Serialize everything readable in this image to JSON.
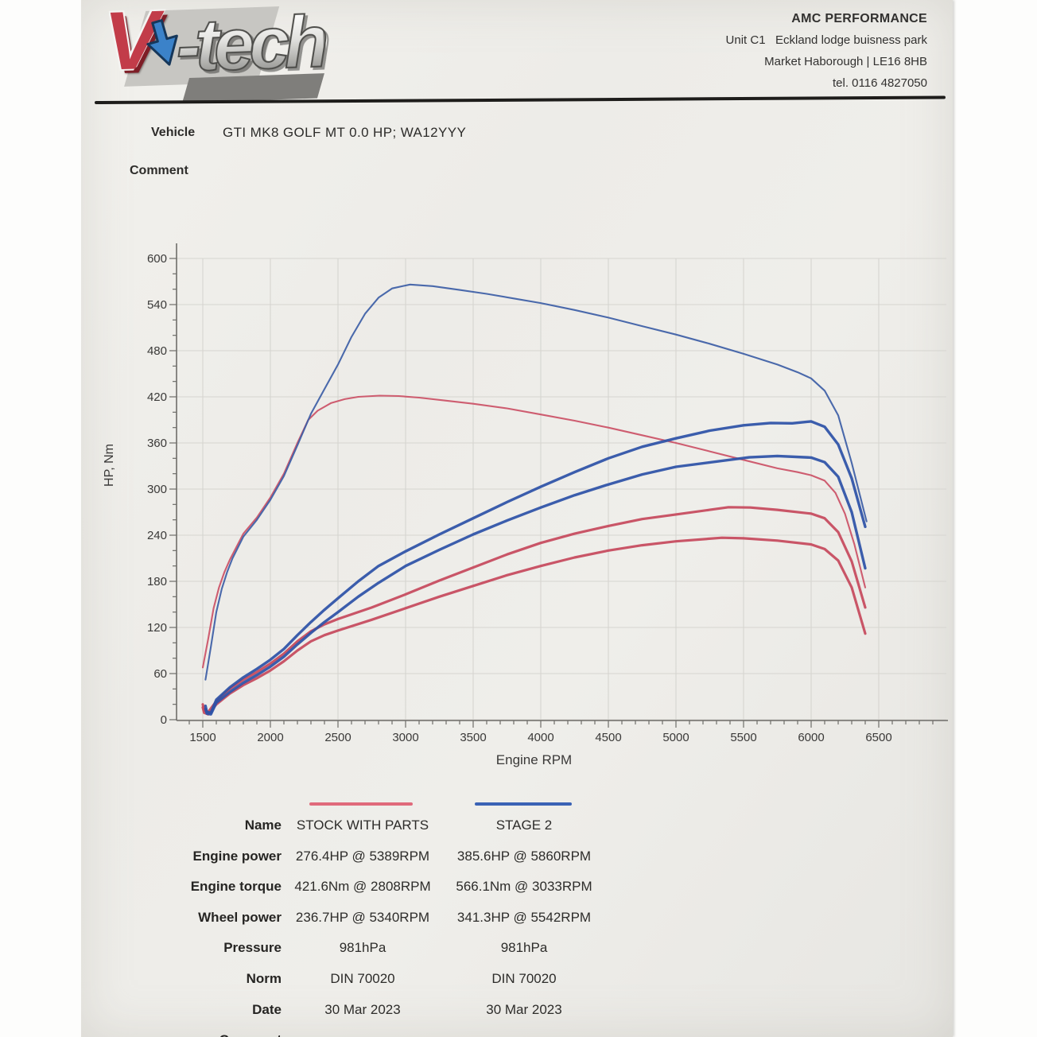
{
  "header": {
    "logo": {
      "v": "V",
      "rest": "-tech"
    },
    "company": {
      "name": "AMC PERFORMANCE",
      "line1": "Unit C1   Eckland lodge buisness park",
      "line2": "Market Haborough | LE16 8HB",
      "line3": "tel. 0116 4827050"
    }
  },
  "info": {
    "vehicle_label": "Vehicle",
    "vehicle_value": "GTI MK8 GOLF MT 0.0 HP; WA12YYY",
    "comment_label": "Comment"
  },
  "chart_data": {
    "type": "line",
    "title": "",
    "xlabel": "Engine RPM",
    "ylabel": "HP, Nm",
    "xlim": [
      1300,
      7000
    ],
    "ylim": [
      0,
      620
    ],
    "x_ticks": [
      1500,
      2000,
      2500,
      3000,
      3500,
      4000,
      4500,
      5000,
      5500,
      6000,
      6500
    ],
    "y_ticks": [
      0,
      60,
      120,
      180,
      240,
      300,
      360,
      420,
      480,
      540,
      600
    ],
    "x_minor_step": 100,
    "y_minor_step": 20,
    "grid": true,
    "legend_position": "below",
    "colors": {
      "stock": "#c6495d",
      "stage2": "#2d52a7",
      "stock_thin": "#cb5266",
      "stage2_thin": "#3d5fa6",
      "legend_stock": "#e06a7b",
      "legend_stage2": "#3a62b5"
    },
    "series": [
      {
        "name": "stock-engine-torque-Nm",
        "legend": "STOCK WITH PARTS",
        "kind": "torque",
        "width": 2.1,
        "color": "#cb5266",
        "points": [
          [
            1500,
            68
          ],
          [
            1540,
            105
          ],
          [
            1580,
            145
          ],
          [
            1620,
            172
          ],
          [
            1660,
            192
          ],
          [
            1700,
            208
          ],
          [
            1800,
            242
          ],
          [
            1900,
            263
          ],
          [
            2000,
            289
          ],
          [
            2100,
            320
          ],
          [
            2200,
            360
          ],
          [
            2280,
            390
          ],
          [
            2350,
            402
          ],
          [
            2450,
            412
          ],
          [
            2550,
            417
          ],
          [
            2650,
            420
          ],
          [
            2808,
            421.6
          ],
          [
            2950,
            421
          ],
          [
            3100,
            419
          ],
          [
            3300,
            415
          ],
          [
            3500,
            411
          ],
          [
            3750,
            405
          ],
          [
            4000,
            397
          ],
          [
            4250,
            389
          ],
          [
            4500,
            380
          ],
          [
            4750,
            370
          ],
          [
            5000,
            360
          ],
          [
            5250,
            349
          ],
          [
            5500,
            338
          ],
          [
            5750,
            327
          ],
          [
            5900,
            322
          ],
          [
            6000,
            318
          ],
          [
            6100,
            311
          ],
          [
            6180,
            295
          ],
          [
            6250,
            268
          ],
          [
            6320,
            228
          ],
          [
            6400,
            172
          ]
        ]
      },
      {
        "name": "stock-engine-power-HP",
        "legend": "STOCK WITH PARTS",
        "kind": "power",
        "width": 3.2,
        "color": "#c6495d",
        "points": [
          [
            1500,
            20
          ],
          [
            1510,
            12
          ],
          [
            1540,
            10
          ],
          [
            1600,
            24
          ],
          [
            1700,
            40
          ],
          [
            1800,
            52
          ],
          [
            1900,
            62
          ],
          [
            2000,
            73
          ],
          [
            2100,
            86
          ],
          [
            2200,
            102
          ],
          [
            2300,
            115
          ],
          [
            2400,
            124
          ],
          [
            2500,
            131
          ],
          [
            2750,
            146
          ],
          [
            3000,
            163
          ],
          [
            3250,
            181
          ],
          [
            3500,
            198
          ],
          [
            3750,
            215
          ],
          [
            4000,
            230
          ],
          [
            4250,
            242
          ],
          [
            4500,
            252
          ],
          [
            4750,
            261
          ],
          [
            5000,
            267
          ],
          [
            5250,
            273
          ],
          [
            5389,
            276.4
          ],
          [
            5550,
            276
          ],
          [
            5750,
            273
          ],
          [
            6000,
            268
          ],
          [
            6100,
            262
          ],
          [
            6200,
            244
          ],
          [
            6300,
            206
          ],
          [
            6400,
            146
          ]
        ]
      },
      {
        "name": "stock-wheel-power-HP",
        "legend": "STOCK WITH PARTS",
        "kind": "power",
        "width": 3.2,
        "color": "#c6495d",
        "points": [
          [
            1500,
            16
          ],
          [
            1510,
            9
          ],
          [
            1540,
            7
          ],
          [
            1600,
            20
          ],
          [
            1700,
            34
          ],
          [
            1800,
            45
          ],
          [
            1900,
            54
          ],
          [
            2000,
            64
          ],
          [
            2100,
            76
          ],
          [
            2200,
            90
          ],
          [
            2300,
            102
          ],
          [
            2400,
            110
          ],
          [
            2500,
            116
          ],
          [
            2750,
            130
          ],
          [
            3000,
            145
          ],
          [
            3250,
            160
          ],
          [
            3500,
            174
          ],
          [
            3750,
            188
          ],
          [
            4000,
            200
          ],
          [
            4250,
            211
          ],
          [
            4500,
            220
          ],
          [
            4750,
            227
          ],
          [
            5000,
            232
          ],
          [
            5340,
            236.7
          ],
          [
            5500,
            236
          ],
          [
            5750,
            233
          ],
          [
            6000,
            228
          ],
          [
            6100,
            222
          ],
          [
            6200,
            207
          ],
          [
            6300,
            172
          ],
          [
            6400,
            112
          ]
        ]
      },
      {
        "name": "stage2-engine-torque-Nm",
        "legend": "STAGE 2",
        "kind": "torque",
        "width": 2.1,
        "color": "#3d5fa6",
        "points": [
          [
            1520,
            52
          ],
          [
            1560,
            95
          ],
          [
            1600,
            140
          ],
          [
            1640,
            170
          ],
          [
            1680,
            192
          ],
          [
            1720,
            210
          ],
          [
            1800,
            238
          ],
          [
            1900,
            260
          ],
          [
            2000,
            286
          ],
          [
            2100,
            317
          ],
          [
            2200,
            357
          ],
          [
            2300,
            398
          ],
          [
            2400,
            430
          ],
          [
            2500,
            462
          ],
          [
            2600,
            498
          ],
          [
            2700,
            528
          ],
          [
            2800,
            549
          ],
          [
            2900,
            561
          ],
          [
            3033,
            566.1
          ],
          [
            3200,
            564
          ],
          [
            3400,
            559
          ],
          [
            3600,
            554
          ],
          [
            3800,
            548
          ],
          [
            4000,
            542
          ],
          [
            4250,
            533
          ],
          [
            4500,
            523
          ],
          [
            4750,
            512
          ],
          [
            5000,
            501
          ],
          [
            5250,
            489
          ],
          [
            5500,
            476
          ],
          [
            5750,
            462
          ],
          [
            5900,
            452
          ],
          [
            6000,
            444
          ],
          [
            6100,
            428
          ],
          [
            6200,
            396
          ],
          [
            6300,
            334
          ],
          [
            6410,
            258
          ]
        ]
      },
      {
        "name": "stage2-engine-power-HP",
        "legend": "STAGE 2",
        "kind": "power",
        "width": 3.4,
        "color": "#2d52a7",
        "points": [
          [
            1520,
            18
          ],
          [
            1530,
            10
          ],
          [
            1560,
            9
          ],
          [
            1600,
            26
          ],
          [
            1700,
            42
          ],
          [
            1800,
            55
          ],
          [
            1900,
            66
          ],
          [
            2000,
            78
          ],
          [
            2100,
            92
          ],
          [
            2200,
            110
          ],
          [
            2300,
            127
          ],
          [
            2400,
            143
          ],
          [
            2500,
            158
          ],
          [
            2650,
            180
          ],
          [
            2800,
            200
          ],
          [
            3000,
            219
          ],
          [
            3250,
            241
          ],
          [
            3500,
            262
          ],
          [
            3750,
            283
          ],
          [
            4000,
            303
          ],
          [
            4250,
            322
          ],
          [
            4500,
            340
          ],
          [
            4750,
            355
          ],
          [
            5000,
            366
          ],
          [
            5250,
            376
          ],
          [
            5500,
            383
          ],
          [
            5700,
            386
          ],
          [
            5860,
            385.6
          ],
          [
            6000,
            388
          ],
          [
            6100,
            381
          ],
          [
            6200,
            358
          ],
          [
            6300,
            314
          ],
          [
            6400,
            251
          ]
        ]
      },
      {
        "name": "stage2-wheel-power-HP",
        "legend": "STAGE 2",
        "kind": "power",
        "width": 3.4,
        "color": "#2d52a7",
        "points": [
          [
            1520,
            14
          ],
          [
            1530,
            8
          ],
          [
            1560,
            7
          ],
          [
            1600,
            22
          ],
          [
            1700,
            36
          ],
          [
            1800,
            48
          ],
          [
            1900,
            58
          ],
          [
            2000,
            69
          ],
          [
            2100,
            82
          ],
          [
            2200,
            98
          ],
          [
            2300,
            113
          ],
          [
            2400,
            127
          ],
          [
            2500,
            140
          ],
          [
            2650,
            160
          ],
          [
            2800,
            178
          ],
          [
            3000,
            200
          ],
          [
            3250,
            221
          ],
          [
            3500,
            241
          ],
          [
            3750,
            259
          ],
          [
            4000,
            276
          ],
          [
            4250,
            292
          ],
          [
            4500,
            306
          ],
          [
            4750,
            319
          ],
          [
            5000,
            329
          ],
          [
            5542,
            341.3
          ],
          [
            5750,
            343
          ],
          [
            6000,
            341
          ],
          [
            6100,
            335
          ],
          [
            6200,
            316
          ],
          [
            6300,
            270
          ],
          [
            6400,
            197
          ]
        ]
      }
    ]
  },
  "results": {
    "legend": [
      {
        "name": "STOCK WITH PARTS",
        "color": "#e06a7b"
      },
      {
        "name": "STAGE 2",
        "color": "#3a62b5"
      }
    ],
    "rows": [
      {
        "label": "Name",
        "col1": "STOCK WITH PARTS",
        "col2": "STAGE 2"
      },
      {
        "label": "Engine power",
        "col1": "276.4HP @ 5389RPM",
        "col2": "385.6HP @ 5860RPM"
      },
      {
        "label": "Engine torque",
        "col1": "421.6Nm @ 2808RPM",
        "col2": "566.1Nm @ 3033RPM"
      },
      {
        "label": "Wheel power",
        "col1": "236.7HP @ 5340RPM",
        "col2": "341.3HP @ 5542RPM"
      },
      {
        "label": "Pressure",
        "col1": "981hPa",
        "col2": "981hPa"
      },
      {
        "label": "Norm",
        "col1": "DIN 70020",
        "col2": "DIN 70020"
      },
      {
        "label": "Date",
        "col1": "30 Mar 2023",
        "col2": "30 Mar 2023"
      },
      {
        "label": "Comment",
        "col1": "",
        "col2": ""
      }
    ]
  }
}
